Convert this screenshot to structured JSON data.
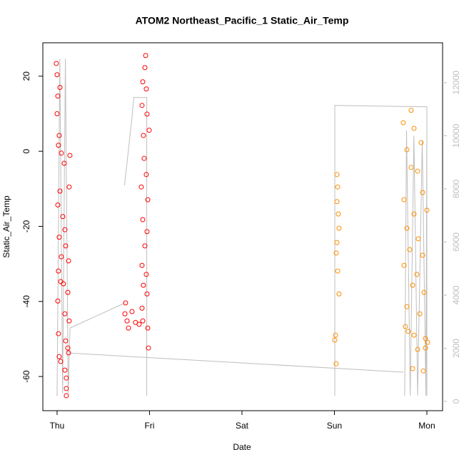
{
  "chart_data": {
    "type": "scatter",
    "title": "ATOM2 Northeast_Pacific_1 Static_Air_Temp",
    "x_label": "Date",
    "y_label": "Static_Air_Temp",
    "xlim": [
      -0.154,
      4.17
    ],
    "xticks": [
      {
        "value": 0,
        "label": "Thu"
      },
      {
        "value": 1,
        "label": "Fri"
      },
      {
        "value": 2,
        "label": "Sat"
      },
      {
        "value": 3,
        "label": "Sun"
      },
      {
        "value": 4,
        "label": "Mon"
      }
    ],
    "ylim": [
      -69.1,
      28.9
    ],
    "yticks": [
      -60,
      -40,
      -20,
      0,
      20
    ],
    "y2lim": [
      -350,
      13500
    ],
    "y2ticks": [
      0,
      2000,
      4000,
      6000,
      8000,
      10000,
      12000
    ],
    "series": [
      {
        "color": "#bebebe",
        "axis": "y2",
        "x": [
          0,
          0.03,
          0.06,
          0.09,
          0.12,
          0.14,
          0.73,
          null,
          0.73,
          0.81,
          0.83,
          0.97,
          0.97,
          null,
          0.13,
          3.745,
          null,
          3.004,
          3.004,
          4.0,
          4.0,
          null,
          3.76,
          3.78,
          3.82,
          3.86,
          3.9,
          3.95,
          3.99,
          4.0
        ],
        "values": [
          200,
          12900,
          300,
          12900,
          300,
          2760,
          3700,
          null,
          8130,
          10680,
          11440,
          11440,
          215,
          null,
          1820,
          1100,
          null,
          215,
          11140,
          11090,
          215,
          null,
          215,
          10200,
          215,
          10000,
          215,
          9800,
          215,
          10300
        ]
      },
      {
        "color": "#ff0000",
        "x": [
          -0.008,
          0,
          0.008,
          0,
          0.031,
          0.023,
          0.015,
          0.046,
          0.077,
          0.139,
          0.031,
          0.131,
          0.008,
          0.062,
          0.085,
          0.023,
          0.093,
          0.046,
          0.124,
          0.015,
          0.039,
          0.069,
          0.116,
          0.008,
          0.085,
          0.131,
          0.015,
          0.093,
          0.116,
          0.023,
          0.039,
          0.085,
          0.1,
          0.1,
          0.1,
          0.124,
          0.741,
          0.734,
          0.757,
          0.772,
          0.811,
          0.849,
          0.888,
          0.927,
          0.958,
          0.95,
          0.927,
          0.965,
          0.919,
          0.973,
          0.934,
          0.996,
          0.942,
          0.965,
          0.911,
          0.981,
          0.927,
          0.973,
          0.95,
          0.919,
          0.965,
          0.934,
          0.973,
          0.919,
          0.988,
          0.981
        ],
        "values": [
          23.4,
          20.4,
          14.7,
          10,
          17,
          4.2,
          1.6,
          -0.5,
          -3.2,
          -1.1,
          -10.6,
          -9.5,
          -14.3,
          -17.4,
          -20.9,
          -22.9,
          -25.2,
          -28.1,
          -29.2,
          -31.9,
          -34.7,
          -35.3,
          -37.6,
          -39.9,
          -43.3,
          -45.2,
          -48.6,
          -50.5,
          -52.4,
          -54.7,
          -56,
          -58.3,
          -60.4,
          -63.2,
          -65.1,
          -53.7,
          -40.4,
          -43.3,
          -45.2,
          -47.1,
          -42.7,
          -45.6,
          -46.1,
          -45.2,
          25.5,
          22.3,
          18.5,
          16.6,
          12.2,
          9.9,
          4.2,
          5.6,
          -1.9,
          -6.2,
          -9.5,
          -12.9,
          -18.2,
          -21.4,
          -25.2,
          -30.4,
          -32.8,
          -35.7,
          -38,
          -41.8,
          -52.4,
          -47.1
        ]
      },
      {
        "color": "#ff8c00",
        "x": [
          3.027,
          3.035,
          3.027,
          3.042,
          3.05,
          3.027,
          3.019,
          3.035,
          3.05,
          3.012,
          3.004,
          3.019,
          3.83,
          3.745,
          3.861,
          3.784,
          3.938,
          3.83,
          3.9,
          3.954,
          3.753,
          3.861,
          4.0,
          3.784,
          3.907,
          3.815,
          3.954,
          3.753,
          3.892,
          3.846,
          3.969,
          3.784,
          3.923,
          3.768,
          3.799,
          3.861,
          3.985,
          4.008,
          3.9,
          3.846,
          3.961,
          3.985
        ],
        "values": [
          -6.2,
          -9.5,
          -13.4,
          -16.7,
          -20.5,
          -24.3,
          -27.1,
          -31.9,
          -38,
          -49,
          -50.3,
          -56.6,
          10.9,
          7.6,
          6.1,
          0.4,
          2.3,
          -4.3,
          -5.3,
          -11,
          -12.9,
          -16.7,
          -15.7,
          -20.5,
          -23.3,
          -26.2,
          -27.7,
          -30.4,
          -32.8,
          -35.7,
          -37.6,
          -41.4,
          -43.3,
          -46.7,
          -48,
          -49,
          -49.9,
          -50.9,
          -52.8,
          -57.9,
          -58.5,
          -52.4
        ]
      }
    ]
  }
}
